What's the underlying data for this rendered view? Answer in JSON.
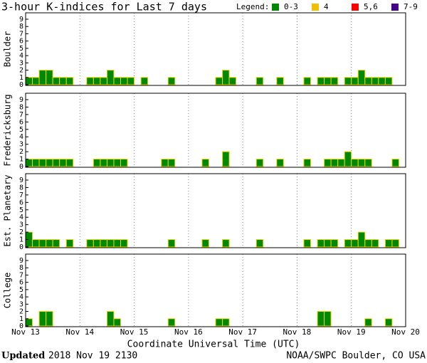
{
  "title": "3-hour K-indices for Last 7 days",
  "legend": {
    "title": "Legend:",
    "items": [
      {
        "name": "0-3",
        "color": "#008800"
      },
      {
        "name": "4",
        "color": "#f0c000"
      },
      {
        "name": "5,6",
        "color": "#ff0000"
      },
      {
        "name": "7-9",
        "color": "#440088"
      }
    ]
  },
  "xticks": [
    "Nov 13",
    "Nov 14",
    "Nov 15",
    "Nov 16",
    "Nov 17",
    "Nov 18",
    "Nov 19",
    "Nov 20"
  ],
  "xlabel": "Coordinate Universal Time (UTC)",
  "footer": {
    "label": "Updated",
    "date": "2018 Nov 19 2130",
    "source": "NOAA/SWPC Boulder, CO USA"
  },
  "chart_data": [
    {
      "type": "bar",
      "ylabel": "Boulder",
      "color": "#008800",
      "ylim": [
        0,
        9
      ],
      "yticks": [
        0,
        1,
        2,
        3,
        4,
        5,
        6,
        7,
        8,
        9
      ],
      "values": [
        1,
        1,
        2,
        2,
        1,
        1,
        1,
        0,
        0,
        1,
        1,
        1,
        2,
        1,
        1,
        1,
        0,
        1,
        0,
        0,
        0,
        1,
        0,
        0,
        0,
        0,
        0,
        0,
        1,
        2,
        1,
        0,
        0,
        0,
        1,
        0,
        0,
        1,
        0,
        0,
        0,
        1,
        0,
        1,
        1,
        1,
        0,
        1,
        1,
        2,
        1,
        1,
        1,
        1,
        0,
        0
      ]
    },
    {
      "type": "bar",
      "ylabel": "Fredericksburg",
      "color": "#008800",
      "ylim": [
        0,
        9
      ],
      "yticks": [
        0,
        1,
        2,
        3,
        4,
        5,
        6,
        7,
        8,
        9
      ],
      "values": [
        1,
        1,
        1,
        1,
        1,
        1,
        1,
        0,
        0,
        0,
        1,
        1,
        1,
        1,
        1,
        0,
        0,
        0,
        0,
        0,
        1,
        1,
        0,
        0,
        0,
        0,
        1,
        0,
        0,
        2,
        0,
        0,
        0,
        0,
        1,
        0,
        0,
        1,
        0,
        0,
        0,
        1,
        0,
        0,
        1,
        1,
        1,
        2,
        1,
        1,
        1,
        0,
        0,
        0,
        1,
        0
      ]
    },
    {
      "type": "bar",
      "ylabel": "Est. Planetary",
      "color": "#008800",
      "ylim": [
        0,
        9
      ],
      "yticks": [
        0,
        1,
        2,
        3,
        4,
        5,
        6,
        7,
        8,
        9
      ],
      "values": [
        2,
        1,
        1,
        1,
        1,
        0,
        1,
        0,
        0,
        1,
        1,
        1,
        1,
        1,
        1,
        0,
        0,
        0,
        0,
        0,
        0,
        1,
        0,
        0,
        0,
        0,
        1,
        0,
        0,
        1,
        0,
        0,
        0,
        0,
        1,
        0,
        0,
        0,
        0,
        0,
        0,
        1,
        0,
        1,
        1,
        1,
        0,
        1,
        1,
        2,
        1,
        1,
        0,
        1,
        1,
        0
      ]
    },
    {
      "type": "bar",
      "ylabel": "College",
      "color": "#008800",
      "ylim": [
        0,
        9
      ],
      "yticks": [
        0,
        1,
        2,
        3,
        4,
        5,
        6,
        7,
        8,
        9
      ],
      "values": [
        1,
        0,
        2,
        2,
        0,
        0,
        0,
        0,
        0,
        0,
        0,
        0,
        2,
        1,
        0,
        0,
        0,
        0,
        0,
        0,
        0,
        1,
        0,
        0,
        0,
        0,
        0,
        0,
        1,
        1,
        0,
        0,
        0,
        0,
        0,
        0,
        0,
        0,
        0,
        0,
        0,
        0,
        0,
        2,
        2,
        0,
        0,
        0,
        0,
        0,
        1,
        0,
        0,
        1,
        0,
        0
      ]
    }
  ]
}
